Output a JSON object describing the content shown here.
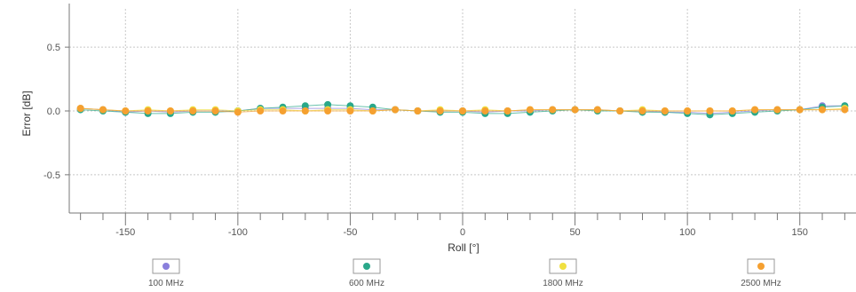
{
  "chart_data": {
    "type": "scatter",
    "title": "",
    "xlabel": "Roll [°]",
    "ylabel": "Error [dB]",
    "xlim": [
      -175,
      175
    ],
    "ylim": [
      -0.8,
      0.8
    ],
    "x_ticks": [
      -150,
      -100,
      -50,
      0,
      50,
      100,
      150
    ],
    "y_ticks": [
      0.5,
      0.0,
      -0.5
    ],
    "x_tick_labels": [
      "-150",
      "-100",
      "-50",
      "0",
      "50",
      "100",
      "150"
    ],
    "y_tick_labels": [
      "0.5",
      "0.0",
      "-0.5"
    ],
    "grid": true,
    "legend_position": "bottom",
    "series": [
      {
        "name": "100 MHz",
        "color": "#8a7fdc",
        "points": [
          [
            -170,
            0.02
          ],
          [
            -160,
            0.01
          ],
          [
            -150,
            -0.01
          ],
          [
            -140,
            0.0
          ],
          [
            -130,
            -0.01
          ],
          [
            -120,
            0.0
          ],
          [
            -110,
            0.0
          ],
          [
            -100,
            0.0
          ],
          [
            -90,
            0.02
          ],
          [
            -80,
            0.02
          ],
          [
            -70,
            0.02
          ],
          [
            -60,
            0.02
          ],
          [
            -50,
            0.02
          ],
          [
            -40,
            0.01
          ],
          [
            -30,
            0.01
          ],
          [
            -20,
            0.0
          ],
          [
            -10,
            0.0
          ],
          [
            0,
            0.0
          ],
          [
            10,
            -0.01
          ],
          [
            20,
            0.0
          ],
          [
            30,
            0.0
          ],
          [
            40,
            0.01
          ],
          [
            50,
            0.01
          ],
          [
            60,
            0.01
          ],
          [
            70,
            0.0
          ],
          [
            80,
            0.0
          ],
          [
            90,
            -0.01
          ],
          [
            100,
            -0.01
          ],
          [
            110,
            -0.02
          ],
          [
            120,
            -0.01
          ],
          [
            130,
            0.0
          ],
          [
            140,
            0.01
          ],
          [
            150,
            0.01
          ],
          [
            160,
            0.04
          ],
          [
            170,
            0.04
          ]
        ]
      },
      {
        "name": "600 MHz",
        "color": "#2aa88a",
        "points": [
          [
            -170,
            0.01
          ],
          [
            -160,
            0.0
          ],
          [
            -150,
            -0.01
          ],
          [
            -140,
            -0.02
          ],
          [
            -130,
            -0.02
          ],
          [
            -120,
            -0.01
          ],
          [
            -110,
            -0.01
          ],
          [
            -100,
            0.0
          ],
          [
            -90,
            0.02
          ],
          [
            -80,
            0.03
          ],
          [
            -70,
            0.04
          ],
          [
            -60,
            0.05
          ],
          [
            -50,
            0.04
          ],
          [
            -40,
            0.03
          ],
          [
            -30,
            0.01
          ],
          [
            -20,
            0.0
          ],
          [
            -10,
            -0.01
          ],
          [
            0,
            -0.01
          ],
          [
            10,
            -0.02
          ],
          [
            20,
            -0.02
          ],
          [
            30,
            -0.01
          ],
          [
            40,
            0.0
          ],
          [
            50,
            0.01
          ],
          [
            60,
            0.0
          ],
          [
            70,
            0.0
          ],
          [
            80,
            -0.01
          ],
          [
            90,
            -0.01
          ],
          [
            100,
            -0.02
          ],
          [
            110,
            -0.03
          ],
          [
            120,
            -0.02
          ],
          [
            130,
            -0.01
          ],
          [
            140,
            0.0
          ],
          [
            150,
            0.01
          ],
          [
            160,
            0.03
          ],
          [
            170,
            0.04
          ]
        ]
      },
      {
        "name": "1800 MHz",
        "color": "#f0e040",
        "points": [
          [
            -170,
            0.02
          ],
          [
            -160,
            0.01
          ],
          [
            -150,
            0.0
          ],
          [
            -140,
            0.01
          ],
          [
            -130,
            0.0
          ],
          [
            -120,
            0.01
          ],
          [
            -110,
            0.01
          ],
          [
            -100,
            0.0
          ],
          [
            -90,
            0.01
          ],
          [
            -80,
            0.01
          ],
          [
            -70,
            0.0
          ],
          [
            -60,
            0.01
          ],
          [
            -50,
            0.01
          ],
          [
            -40,
            0.0
          ],
          [
            -30,
            0.01
          ],
          [
            -20,
            0.0
          ],
          [
            -10,
            0.01
          ],
          [
            0,
            0.0
          ],
          [
            10,
            0.01
          ],
          [
            20,
            0.0
          ],
          [
            30,
            0.01
          ],
          [
            40,
            0.01
          ],
          [
            50,
            0.01
          ],
          [
            60,
            0.01
          ],
          [
            70,
            0.0
          ],
          [
            80,
            0.01
          ],
          [
            90,
            0.0
          ],
          [
            100,
            0.0
          ],
          [
            110,
            0.0
          ],
          [
            120,
            0.0
          ],
          [
            130,
            0.01
          ],
          [
            140,
            0.01
          ],
          [
            150,
            0.01
          ],
          [
            160,
            0.01
          ],
          [
            170,
            0.02
          ]
        ]
      },
      {
        "name": "2500 MHz",
        "color": "#f5a030",
        "points": [
          [
            -170,
            0.02
          ],
          [
            -160,
            0.01
          ],
          [
            -150,
            0.0
          ],
          [
            -140,
            0.0
          ],
          [
            -130,
            0.0
          ],
          [
            -120,
            0.0
          ],
          [
            -110,
            0.0
          ],
          [
            -100,
            -0.01
          ],
          [
            -90,
            0.0
          ],
          [
            -80,
            0.0
          ],
          [
            -70,
            0.0
          ],
          [
            -60,
            0.0
          ],
          [
            -50,
            0.0
          ],
          [
            -40,
            0.0
          ],
          [
            -30,
            0.01
          ],
          [
            -20,
            0.0
          ],
          [
            -10,
            0.0
          ],
          [
            0,
            0.0
          ],
          [
            10,
            0.0
          ],
          [
            20,
            0.0
          ],
          [
            30,
            0.01
          ],
          [
            40,
            0.01
          ],
          [
            50,
            0.01
          ],
          [
            60,
            0.01
          ],
          [
            70,
            0.0
          ],
          [
            80,
            0.0
          ],
          [
            90,
            0.0
          ],
          [
            100,
            0.0
          ],
          [
            110,
            0.0
          ],
          [
            120,
            0.0
          ],
          [
            130,
            0.01
          ],
          [
            140,
            0.01
          ],
          [
            150,
            0.01
          ],
          [
            160,
            0.01
          ],
          [
            170,
            0.01
          ]
        ]
      }
    ]
  }
}
